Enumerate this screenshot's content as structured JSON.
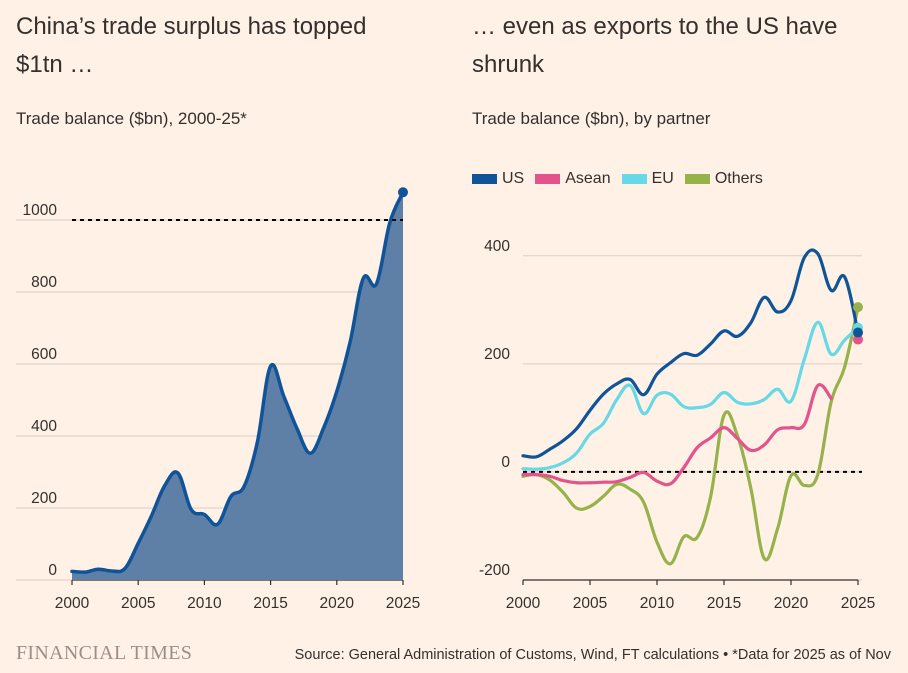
{
  "left": {
    "title": "China’s trade surplus has topped $1tn …",
    "subtitle": "Trade balance ($bn), 2000-25*"
  },
  "right": {
    "title": "… even as exports to the US have shrunk",
    "subtitle": "Trade balance ($bn), by partner"
  },
  "footer": {
    "brand": "FINANCIAL TIMES",
    "source": "Source: General Administration of Customs, Wind, FT calculations • *Data for 2025 as of Nov"
  },
  "chart_data": [
    {
      "type": "area",
      "x": [
        2000,
        2001,
        2002,
        2003,
        2004,
        2005,
        2006,
        2007,
        2008,
        2009,
        2010,
        2011,
        2012,
        2013,
        2014,
        2015,
        2016,
        2017,
        2018,
        2019,
        2020,
        2021,
        2022,
        2023,
        2024,
        2025
      ],
      "series": [
        {
          "color": "#0f5499",
          "fill": "#5e7fa6",
          "values": [
            24,
            22,
            30,
            25,
            32,
            102,
            178,
            262,
            297,
            196,
            182,
            155,
            232,
            260,
            383,
            594,
            510,
            420,
            352,
            422,
            524,
            660,
            838,
            823,
            992,
            1077
          ]
        }
      ],
      "xlim": [
        2000,
        2025
      ],
      "ylim": [
        0,
        1100
      ],
      "yticks": [
        0,
        200,
        400,
        600,
        800,
        1000
      ],
      "xticks": [
        2000,
        2005,
        2010,
        2015,
        2020,
        2025
      ],
      "reference_line": 1000,
      "grid": true
    },
    {
      "type": "line",
      "x": [
        2000,
        2001,
        2002,
        2003,
        2004,
        2005,
        2006,
        2007,
        2008,
        2009,
        2010,
        2011,
        2012,
        2013,
        2014,
        2015,
        2016,
        2017,
        2018,
        2019,
        2020,
        2021,
        2022,
        2023,
        2024,
        2025
      ],
      "series": [
        {
          "name": "US",
          "color": "#0f5499",
          "values": [
            30,
            28,
            42,
            58,
            80,
            114,
            144,
            163,
            171,
            143,
            181,
            202,
            219,
            216,
            237,
            261,
            251,
            276,
            323,
            296,
            317,
            397,
            404,
            336,
            361,
            258
          ]
        },
        {
          "name": "Asean",
          "color": "#e3548c",
          "values": [
            -5,
            -5,
            -8,
            -16,
            -20,
            -20,
            -19,
            -18,
            -10,
            -1,
            -17,
            -22,
            8,
            45,
            63,
            82,
            62,
            40,
            50,
            78,
            82,
            88,
            160,
            136,
            null,
            245
          ]
        },
        {
          "name": "EU",
          "color": "#66d8e6",
          "values": [
            6,
            5,
            8,
            17,
            35,
            70,
            90,
            134,
            160,
            108,
            142,
            144,
            121,
            119,
            125,
            147,
            129,
            126,
            134,
            153,
            131,
            209,
            277,
            218,
            244,
            267
          ]
        },
        {
          "name": "Others",
          "color": "#96b24a",
          "values": [
            -8,
            -5,
            -15,
            -38,
            -67,
            -64,
            -45,
            -23,
            -32,
            -56,
            -130,
            -170,
            -120,
            -121,
            -46,
            105,
            67,
            -30,
            -160,
            -105,
            -7,
            -25,
            -5,
            130,
            194,
            305
          ]
        }
      ],
      "xlim": [
        2000,
        2025
      ],
      "ylim": [
        -200,
        420
      ],
      "yticks": [
        -200,
        0,
        200,
        400
      ],
      "xticks": [
        2000,
        2005,
        2010,
        2015,
        2020,
        2025
      ],
      "reference_line": 0,
      "grid": true,
      "legend": "top-left"
    }
  ]
}
